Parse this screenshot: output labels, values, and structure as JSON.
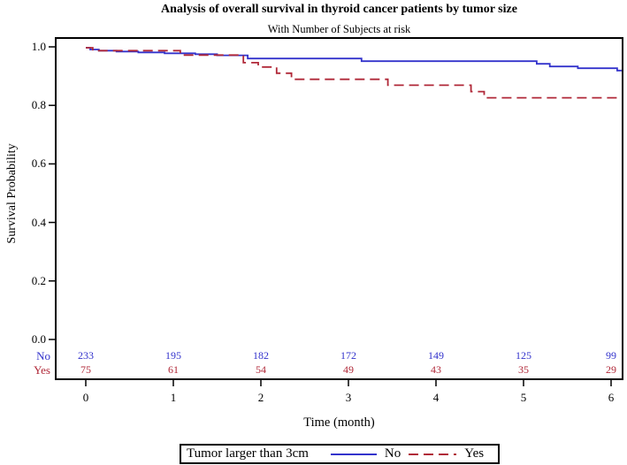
{
  "page": {
    "background": "#ffffff"
  },
  "chart_data": {
    "type": "line",
    "subtype": "kaplan-meier-step-curves",
    "title": "Analysis of overall survival in thyroid cancer patients by tumor size",
    "subtitle": "With Number of Subjects at risk",
    "xlabel": "Time (month)",
    "ylabel": "Survival Probability",
    "xlim": [
      0,
      6.2
    ],
    "ylim": [
      0.0,
      1.0
    ],
    "grid": false,
    "xticks": [
      0,
      1,
      2,
      3,
      4,
      5,
      6
    ],
    "yticks": [
      {
        "v": 1.0,
        "label": "1.0"
      },
      {
        "v": 0.8,
        "label": "0.8"
      },
      {
        "v": 0.6,
        "label": "0.6"
      },
      {
        "v": 0.4,
        "label": "0.4"
      },
      {
        "v": 0.2,
        "label": "0.2"
      },
      {
        "v": 0.0,
        "label": "0.0"
      }
    ],
    "series": [
      {
        "name": "No",
        "color": "#3333cc",
        "line": "solid",
        "steps": [
          [
            0,
            0.997
          ],
          [
            0.05,
            0.991
          ],
          [
            0.15,
            0.987
          ],
          [
            0.35,
            0.984
          ],
          [
            0.6,
            0.981
          ],
          [
            0.9,
            0.978
          ],
          [
            1.25,
            0.975
          ],
          [
            1.5,
            0.971
          ],
          [
            1.85,
            0.96
          ],
          [
            3.15,
            0.951
          ],
          [
            5.15,
            0.942
          ],
          [
            5.3,
            0.933
          ],
          [
            5.62,
            0.927
          ],
          [
            6.07,
            0.919
          ],
          [
            6.12,
            0.919
          ]
        ]
      },
      {
        "name": "Yes",
        "color": "#b02838",
        "line": "dashed",
        "steps": [
          [
            0,
            0.997
          ],
          [
            0.08,
            0.987
          ],
          [
            1.08,
            0.972
          ],
          [
            1.8,
            0.946
          ],
          [
            1.97,
            0.931
          ],
          [
            2.18,
            0.91
          ],
          [
            2.35,
            0.889
          ],
          [
            3.45,
            0.869
          ],
          [
            4.4,
            0.847
          ],
          [
            4.55,
            0.826
          ],
          [
            6.12,
            0.826
          ]
        ]
      }
    ],
    "risk_table": {
      "rows": [
        {
          "label": "No",
          "color": "#3333cc",
          "counts": [
            233,
            195,
            182,
            172,
            149,
            125,
            99
          ]
        },
        {
          "label": "Yes",
          "color": "#b02838",
          "counts": [
            75,
            61,
            54,
            49,
            43,
            35,
            29
          ]
        }
      ]
    },
    "legend": {
      "title": "Tumor larger than 3cm",
      "position": "bottom",
      "entries": [
        {
          "label": "No",
          "color": "#3333cc",
          "style": "solid"
        },
        {
          "label": "Yes",
          "color": "#b02838",
          "style": "dashed"
        }
      ]
    }
  }
}
